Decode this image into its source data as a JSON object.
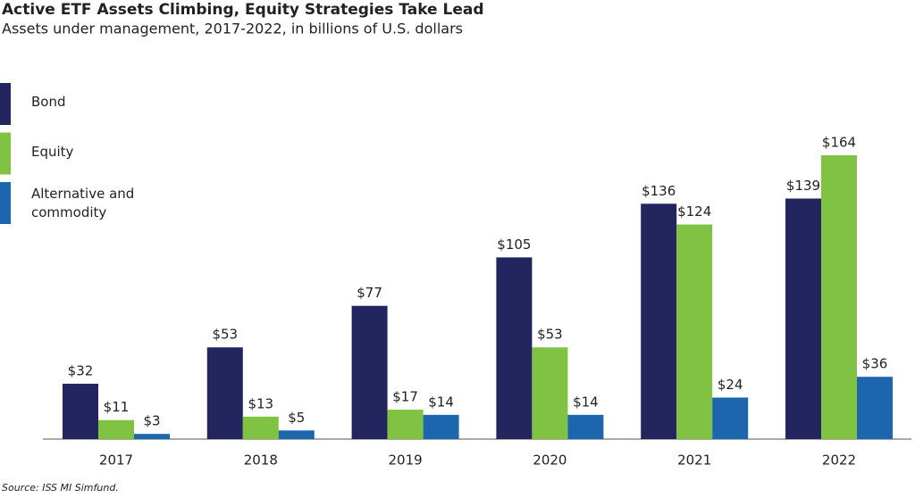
{
  "chart_data": {
    "type": "bar",
    "title": "Active ETF Assets Climbing, Equity Strategies Take Lead",
    "subtitle": "Assets under management, 2017-2022, in billions of U.S. dollars",
    "source": "Source: ISS MI Simfund.",
    "categories": [
      "2017",
      "2018",
      "2019",
      "2020",
      "2021",
      "2022"
    ],
    "series": [
      {
        "name": "Bond",
        "color": "#23255e",
        "values": [
          32,
          53,
          77,
          105,
          136,
          139
        ],
        "value_labels": [
          "$32",
          "$53",
          "$77",
          "$105",
          "$136",
          "$139"
        ]
      },
      {
        "name": "Equity",
        "color": "#80c343",
        "values": [
          11,
          13,
          17,
          53,
          124,
          164
        ],
        "value_labels": [
          "$11",
          "$13",
          "$17",
          "$53",
          "$124",
          "$164"
        ]
      },
      {
        "name": "Alternative and commodity",
        "color": "#1b66ad",
        "values": [
          3,
          5,
          14,
          14,
          24,
          36
        ],
        "value_labels": [
          "$3",
          "$5",
          "$14",
          "$14",
          "$24",
          "$36"
        ]
      }
    ],
    "legend": "top-left"
  }
}
